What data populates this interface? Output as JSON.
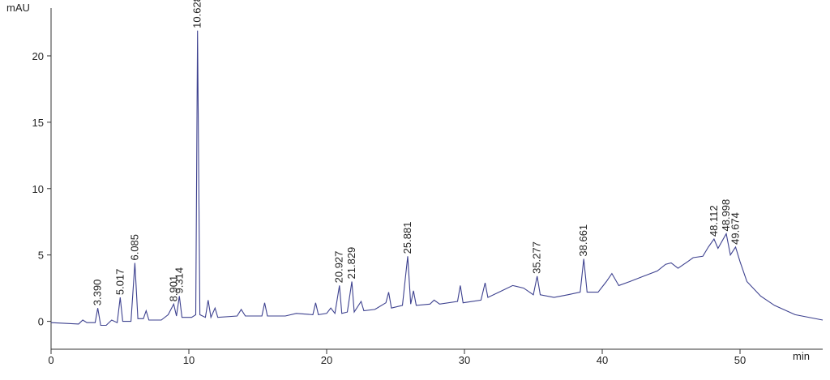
{
  "chart_data": {
    "type": "line",
    "y_label": "mAU",
    "x_label": "min",
    "xlim": [
      0,
      56
    ],
    "ylim": [
      -2.1,
      23.6
    ],
    "xticks": [
      0,
      10,
      20,
      30,
      40,
      50
    ],
    "yticks": [
      0,
      5,
      10,
      15,
      20
    ],
    "series": [
      {
        "color": "#3d418f",
        "x": [
          0,
          2,
          2.3,
          2.6,
          3.2,
          3.39,
          3.6,
          4.0,
          4.4,
          4.8,
          5.017,
          5.2,
          5.8,
          6.085,
          6.3,
          6.7,
          6.9,
          7.1,
          8.0,
          8.5,
          8.9,
          9.1,
          9.314,
          9.5,
          10.2,
          10.5,
          10.628,
          10.8,
          11.2,
          11.4,
          11.6,
          11.9,
          12.1,
          13.5,
          13.8,
          14.1,
          15.3,
          15.5,
          15.7,
          17.0,
          17.8,
          19.0,
          19.2,
          19.4,
          20.0,
          20.3,
          20.6,
          20.927,
          21.1,
          21.5,
          21.829,
          22.0,
          22.5,
          22.7,
          23.5,
          24.3,
          24.5,
          24.7,
          25.5,
          25.881,
          26.1,
          26.3,
          26.5,
          27.5,
          27.8,
          28.2,
          29.5,
          29.7,
          29.9,
          31.2,
          31.5,
          31.7,
          32.5,
          33.5,
          34.3,
          35.0,
          35.277,
          35.5,
          36.5,
          37.5,
          38.4,
          38.661,
          38.9,
          39.7,
          40.3,
          40.7,
          41.2,
          42.0,
          43.0,
          44.0,
          44.6,
          45.0,
          45.5,
          46.2,
          46.6,
          47.3,
          47.7,
          48.112,
          48.4,
          48.998,
          49.3,
          49.674,
          50.0,
          50.5,
          51.5,
          52.5,
          54,
          56
        ],
        "values": [
          -0.1,
          -0.2,
          0.1,
          -0.1,
          -0.1,
          1.0,
          -0.3,
          -0.3,
          0.1,
          -0.1,
          1.8,
          0,
          0.0,
          4.4,
          0.2,
          0.2,
          0.8,
          0.1,
          0.1,
          0.5,
          1.3,
          0.4,
          1.9,
          0.3,
          0.3,
          0.5,
          21.9,
          0.5,
          0.3,
          1.6,
          0.3,
          1.0,
          0.3,
          0.4,
          0.9,
          0.4,
          0.4,
          1.4,
          0.4,
          0.4,
          0.6,
          0.5,
          1.4,
          0.5,
          0.6,
          1.0,
          0.6,
          2.7,
          0.6,
          0.7,
          3.0,
          0.7,
          1.5,
          0.8,
          0.9,
          1.4,
          2.2,
          1.0,
          1.2,
          4.9,
          1.3,
          2.3,
          1.2,
          1.3,
          1.6,
          1.3,
          1.5,
          2.7,
          1.4,
          1.6,
          2.9,
          1.8,
          2.2,
          2.7,
          2.5,
          2.0,
          3.4,
          2.0,
          1.8,
          2.0,
          2.2,
          4.7,
          2.2,
          2.2,
          3.0,
          3.6,
          2.7,
          3.0,
          3.4,
          3.8,
          4.3,
          4.4,
          4.0,
          4.5,
          4.8,
          4.9,
          5.6,
          6.2,
          5.5,
          6.6,
          5.0,
          5.6,
          4.5,
          3.0,
          1.9,
          1.2,
          0.5,
          0.1
        ]
      }
    ],
    "peaks": {
      "values": [
        3.39,
        5.017,
        6.085,
        8.901,
        9.314,
        10.628,
        20.927,
        21.829,
        25.881,
        35.277,
        38.661,
        48.112,
        48.998,
        49.674
      ],
      "value_labels": [
        "3.390",
        "5.017",
        "6.085",
        "8.901",
        "9.314",
        "10.628",
        "20.927",
        "21.829",
        "25.881",
        "35.277",
        "38.661",
        "48.112",
        "48.998",
        "49.674"
      ],
      "heights": [
        1.0,
        1.8,
        4.4,
        1.3,
        1.9,
        21.9,
        2.7,
        3.0,
        4.9,
        3.4,
        4.7,
        6.2,
        6.6,
        5.6
      ]
    }
  }
}
